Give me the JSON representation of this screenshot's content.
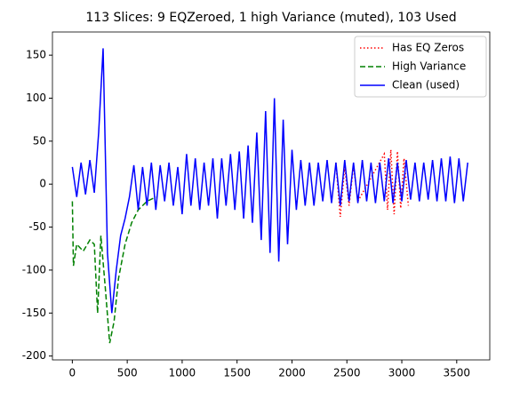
{
  "chart_data": {
    "type": "line",
    "title": "113 Slices: 9 EQZeroed, 1 high Variance (muted), 103 Used",
    "xlim": [
      -181,
      3801
    ],
    "ylim": [
      -204.5,
      177
    ],
    "xticks": [
      0,
      500,
      1000,
      1500,
      2000,
      2500,
      3000,
      3500
    ],
    "yticks": [
      -200,
      -150,
      -100,
      -50,
      0,
      50,
      100,
      150
    ],
    "legend": "upper right",
    "series": [
      {
        "name": "Has EQ Zeros",
        "color": "#ff0000",
        "style": "dotted",
        "x": [
          2400,
          2440,
          2480,
          2520,
          2560,
          2600,
          2840,
          2870,
          2900,
          2930,
          2960,
          2990,
          3020,
          3060
        ],
        "values": [
          25,
          -38,
          20,
          -25,
          22,
          -20,
          35,
          -30,
          40,
          -35,
          38,
          -28,
          30,
          -25
        ]
      },
      {
        "name": "High Variance",
        "color": "#008000",
        "style": "dashed",
        "x": [
          0,
          10,
          40,
          100,
          160,
          200,
          230,
          260,
          300,
          340,
          380,
          420,
          480,
          540,
          600,
          680,
          760
        ],
        "values": [
          -20,
          -95,
          -70,
          -78,
          -65,
          -70,
          -150,
          -60,
          -120,
          -185,
          -160,
          -110,
          -70,
          -45,
          -30,
          -20,
          -15
        ]
      },
      {
        "name": "Clean (used)",
        "color": "#0000ff",
        "style": "solid",
        "x": [
          0,
          40,
          80,
          120,
          160,
          200,
          240,
          280,
          320,
          360,
          400,
          440,
          480,
          520,
          560,
          600,
          640,
          680,
          720,
          760,
          800,
          840,
          880,
          920,
          960,
          1000,
          1040,
          1080,
          1120,
          1160,
          1200,
          1240,
          1280,
          1320,
          1360,
          1400,
          1440,
          1480,
          1520,
          1560,
          1600,
          1640,
          1680,
          1720,
          1760,
          1800,
          1840,
          1880,
          1920,
          1960,
          2000,
          2040,
          2080,
          2120,
          2160,
          2200,
          2240,
          2280,
          2320,
          2360,
          2400,
          2440,
          2480,
          2520,
          2560,
          2600,
          2640,
          2680,
          2720,
          2760,
          2800,
          2840,
          2880,
          2920,
          2960,
          3000,
          3040,
          3080,
          3120,
          3160,
          3200,
          3240,
          3280,
          3320,
          3360,
          3400,
          3440,
          3480,
          3520,
          3560,
          3600
        ],
        "values": [
          20,
          -15,
          25,
          -12,
          28,
          -10,
          60,
          158,
          -80,
          -150,
          -100,
          -60,
          -40,
          -15,
          22,
          -30,
          20,
          -25,
          25,
          -30,
          22,
          -20,
          25,
          -25,
          20,
          -35,
          35,
          -25,
          30,
          -30,
          25,
          -25,
          30,
          -40,
          30,
          -25,
          35,
          -30,
          38,
          -40,
          45,
          -45,
          60,
          -65,
          85,
          -80,
          100,
          -90,
          75,
          -70,
          40,
          -30,
          28,
          -25,
          25,
          -25,
          25,
          -20,
          28,
          -22,
          25,
          -25,
          28,
          -20,
          25,
          -22,
          28,
          -20,
          25,
          -22,
          25,
          -20,
          30,
          -22,
          25,
          -20,
          28,
          -18,
          25,
          -20,
          25,
          -18,
          28,
          -20,
          30,
          -20,
          32,
          -22,
          30,
          -20,
          25
        ]
      }
    ]
  }
}
